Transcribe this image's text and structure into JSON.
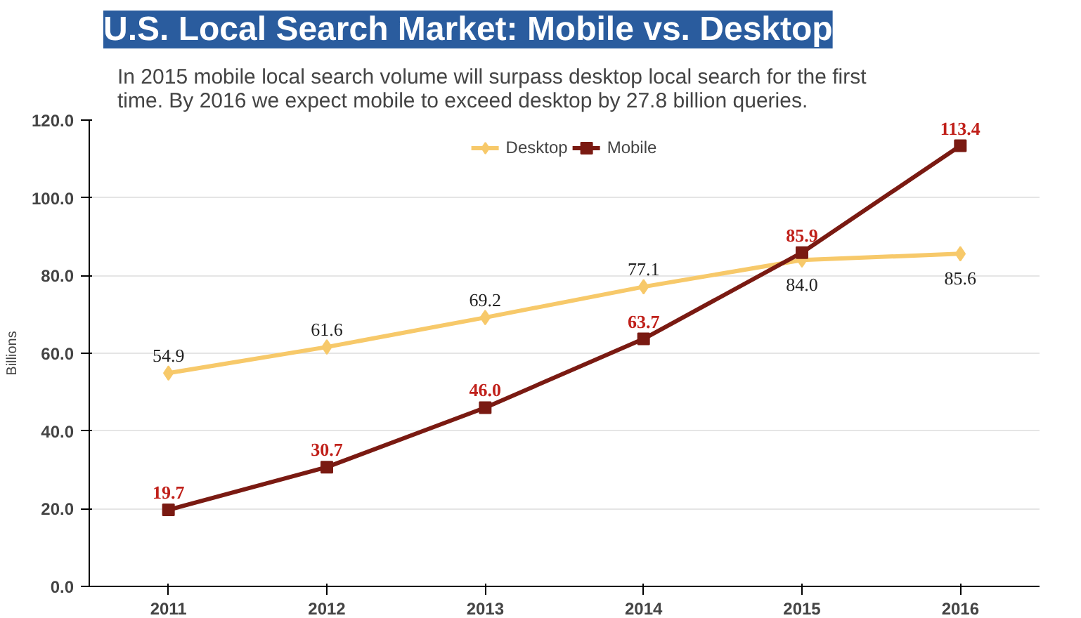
{
  "chart_data": {
    "type": "line",
    "title": "U.S. Local Search Market: Mobile vs. Desktop",
    "subtitle": "In 2015 mobile local search volume will surpass desktop local search for the first\ntime. By 2016 we expect mobile to exceed desktop by 27.8 billion queries.",
    "ylabel": "Billions",
    "categories": [
      "2011",
      "2012",
      "2013",
      "2014",
      "2015",
      "2016"
    ],
    "series": [
      {
        "name": "Desktop",
        "color": "#f7c96a",
        "marker": "diamond",
        "values": [
          54.9,
          61.6,
          69.2,
          77.1,
          84.0,
          85.6
        ],
        "value_labels": [
          "54.9",
          "61.6",
          "69.2",
          "77.1",
          "84.0",
          "85.6"
        ]
      },
      {
        "name": "Mobile",
        "color": "#7a1a12",
        "marker": "square",
        "values": [
          19.7,
          30.7,
          46.0,
          63.7,
          85.9,
          113.4
        ],
        "value_labels": [
          "19.7",
          "30.7",
          "46.0",
          "63.7",
          "85.9",
          "113.4"
        ]
      }
    ],
    "ylim": [
      0,
      120
    ],
    "yticks": [
      {
        "value": 0,
        "label": "0.0"
      },
      {
        "value": 20,
        "label": "20.0"
      },
      {
        "value": 40,
        "label": "40.0"
      },
      {
        "value": 60,
        "label": "60.0"
      },
      {
        "value": 80,
        "label": "80.0"
      },
      {
        "value": 100,
        "label": "100.0"
      },
      {
        "value": 120,
        "label": "120.0"
      }
    ],
    "grid": "y",
    "legend": "top"
  }
}
